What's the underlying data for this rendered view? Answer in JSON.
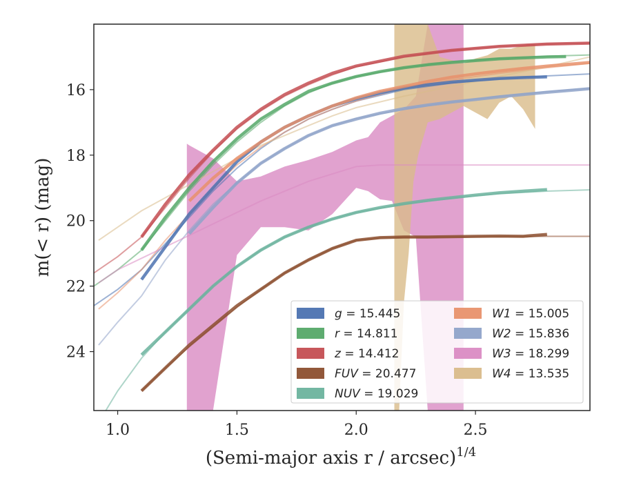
{
  "chart_data": {
    "type": "line",
    "xlabel": "(Semi-major axis r / arcsec)",
    "xlabel_sup": "1/4",
    "ylabel": "m(< r) (mag)",
    "xlim": [
      0.9,
      2.98
    ],
    "ylim": [
      25.8,
      14.0
    ],
    "y_inverted": true,
    "x_ticks": [
      1.0,
      1.5,
      2.0,
      2.5
    ],
    "x_tick_labels": [
      "1.0",
      "1.5",
      "2.0",
      "2.5"
    ],
    "y_ticks": [
      16,
      18,
      20,
      22,
      24
    ],
    "y_tick_labels": [
      "16",
      "18",
      "20",
      "22",
      "24"
    ],
    "grid": false,
    "legend_position": "lower-right",
    "series": [
      {
        "name": "g",
        "legend_value": "15.445",
        "color": "#4c72b0",
        "data_x": [
          1.1,
          1.2,
          1.3,
          1.4,
          1.5,
          1.6,
          1.7,
          1.8,
          1.9,
          2.0,
          2.1,
          2.2,
          2.3,
          2.4,
          2.5,
          2.6,
          2.7,
          2.8
        ],
        "data_y": [
          21.8,
          20.8,
          19.8,
          19.0,
          18.2,
          17.6,
          17.15,
          16.8,
          16.5,
          16.28,
          16.1,
          15.95,
          15.85,
          15.77,
          15.71,
          15.66,
          15.63,
          15.61
        ],
        "model_x": [
          0.9,
          1.0,
          1.1,
          1.2,
          1.3,
          1.4,
          1.5,
          1.6,
          1.7,
          1.8,
          1.9,
          2.0,
          2.2,
          2.4,
          2.6,
          2.8,
          2.98
        ],
        "model_y": [
          22.6,
          22.1,
          21.5,
          20.7,
          19.9,
          19.1,
          18.4,
          17.8,
          17.3,
          16.9,
          16.6,
          16.35,
          16.0,
          15.8,
          15.67,
          15.58,
          15.52
        ]
      },
      {
        "name": "r",
        "legend_value": "14.811",
        "color": "#55a868",
        "data_x": [
          1.1,
          1.2,
          1.3,
          1.4,
          1.5,
          1.6,
          1.7,
          1.8,
          1.9,
          2.0,
          2.1,
          2.2,
          2.3,
          2.4,
          2.5,
          2.6,
          2.7,
          2.8,
          2.88
        ],
        "data_y": [
          20.9,
          19.9,
          19.0,
          18.2,
          17.5,
          16.9,
          16.45,
          16.05,
          15.8,
          15.6,
          15.45,
          15.33,
          15.24,
          15.17,
          15.11,
          15.06,
          15.03,
          15.0,
          14.99
        ],
        "model_x": [
          0.9,
          1.0,
          1.1,
          1.2,
          1.3,
          1.4,
          1.5,
          1.6,
          1.7,
          1.8,
          1.9,
          2.0,
          2.2,
          2.4,
          2.6,
          2.8,
          2.98
        ],
        "model_y": [
          22.0,
          21.5,
          20.9,
          20.0,
          19.1,
          18.3,
          17.6,
          17.0,
          16.5,
          16.1,
          15.8,
          15.6,
          15.33,
          15.15,
          15.05,
          14.98,
          14.94
        ]
      },
      {
        "name": "z",
        "legend_value": "14.412",
        "color": "#c44e52",
        "data_x": [
          1.1,
          1.2,
          1.3,
          1.4,
          1.5,
          1.6,
          1.7,
          1.8,
          1.9,
          2.0,
          2.2,
          2.4,
          2.6,
          2.8,
          2.98
        ],
        "data_y": [
          20.5,
          19.5,
          18.6,
          17.85,
          17.15,
          16.6,
          16.15,
          15.8,
          15.5,
          15.28,
          14.98,
          14.8,
          14.68,
          14.61,
          14.58
        ],
        "model_x": [
          0.9,
          1.0,
          1.1,
          1.2,
          1.3,
          1.4,
          1.5,
          1.6,
          1.7,
          1.8,
          1.9,
          2.0,
          2.2,
          2.4,
          2.6,
          2.8,
          2.98
        ],
        "model_y": [
          21.6,
          21.1,
          20.5,
          19.6,
          18.7,
          17.9,
          17.2,
          16.65,
          16.2,
          15.85,
          15.55,
          15.3,
          15.0,
          14.8,
          14.68,
          14.61,
          14.58
        ]
      },
      {
        "name": "FUV",
        "legend_value": "20.477",
        "color": "#8c4f2f",
        "data_x": [
          1.1,
          1.2,
          1.3,
          1.4,
          1.5,
          1.6,
          1.7,
          1.8,
          1.9,
          2.0,
          2.1,
          2.2,
          2.3,
          2.4,
          2.5,
          2.6,
          2.7,
          2.8
        ],
        "data_y": [
          25.2,
          24.5,
          23.8,
          23.2,
          22.6,
          22.1,
          21.6,
          21.2,
          20.85,
          20.6,
          20.52,
          20.5,
          20.5,
          20.49,
          20.48,
          20.47,
          20.48,
          20.42
        ],
        "model_x": [
          1.1,
          1.2,
          1.3,
          1.4,
          1.5,
          1.6,
          1.7,
          1.8,
          1.9,
          2.0,
          2.1,
          2.2,
          2.4,
          2.6,
          2.8,
          2.98
        ],
        "model_y": [
          25.2,
          24.5,
          23.85,
          23.25,
          22.65,
          22.1,
          21.6,
          21.2,
          20.85,
          20.6,
          20.53,
          20.51,
          20.5,
          20.49,
          20.48,
          20.48
        ]
      },
      {
        "name": "NUV",
        "legend_value": "19.029",
        "color": "#6bb39d",
        "data_x": [
          1.1,
          1.2,
          1.3,
          1.4,
          1.5,
          1.6,
          1.7,
          1.8,
          1.9,
          2.0,
          2.1,
          2.2,
          2.3,
          2.4,
          2.5,
          2.6,
          2.7,
          2.8
        ],
        "data_y": [
          24.1,
          23.4,
          22.7,
          22.0,
          21.4,
          20.9,
          20.5,
          20.2,
          19.95,
          19.75,
          19.6,
          19.48,
          19.38,
          19.3,
          19.22,
          19.15,
          19.1,
          19.05
        ],
        "model_x": [
          0.95,
          1.0,
          1.1,
          1.2,
          1.3,
          1.4,
          1.5,
          1.6,
          1.7,
          1.8,
          1.9,
          2.0,
          2.2,
          2.4,
          2.6,
          2.8,
          2.98
        ],
        "model_y": [
          25.8,
          25.2,
          24.2,
          23.4,
          22.7,
          22.0,
          21.4,
          20.9,
          20.5,
          20.2,
          19.95,
          19.75,
          19.5,
          19.32,
          19.18,
          19.1,
          19.06
        ]
      },
      {
        "name": "W1",
        "legend_value": "15.005",
        "color": "#e8916b",
        "data_x": [
          1.3,
          1.4,
          1.5,
          1.6,
          1.7,
          1.8,
          1.9,
          2.0,
          2.1,
          2.2,
          2.3,
          2.4,
          2.5,
          2.6,
          2.7,
          2.8,
          2.9,
          2.98
        ],
        "data_y": [
          19.4,
          18.7,
          18.1,
          17.6,
          17.15,
          16.8,
          16.5,
          16.25,
          16.05,
          15.9,
          15.75,
          15.62,
          15.52,
          15.43,
          15.35,
          15.28,
          15.22,
          15.17
        ],
        "model_x": [
          0.92,
          1.0,
          1.1,
          1.2,
          1.3,
          1.4,
          1.5,
          1.6,
          1.7,
          1.8,
          1.9,
          2.0,
          2.2,
          2.4,
          2.6,
          2.8,
          2.98
        ],
        "model_y": [
          22.7,
          22.2,
          21.5,
          20.6,
          19.8,
          19.0,
          18.3,
          17.75,
          17.3,
          16.9,
          16.6,
          16.35,
          15.95,
          15.7,
          15.5,
          15.33,
          15.2
        ]
      },
      {
        "name": "W2",
        "legend_value": "15.836",
        "color": "#8fa3c9",
        "data_x": [
          1.3,
          1.4,
          1.5,
          1.6,
          1.7,
          1.8,
          1.9,
          2.0,
          2.1,
          2.2,
          2.3,
          2.4,
          2.5,
          2.6,
          2.7,
          2.8,
          2.9,
          2.98
        ],
        "data_y": [
          20.4,
          19.6,
          18.85,
          18.25,
          17.8,
          17.4,
          17.1,
          16.9,
          16.72,
          16.58,
          16.47,
          16.38,
          16.3,
          16.22,
          16.15,
          16.08,
          16.02,
          15.97
        ],
        "model_x": [
          0.92,
          1.0,
          1.1,
          1.2,
          1.3,
          1.4,
          1.5,
          1.6,
          1.7,
          1.8,
          1.9,
          2.0,
          2.2,
          2.4,
          2.6,
          2.8,
          2.98
        ],
        "model_y": [
          23.8,
          23.1,
          22.3,
          21.2,
          20.3,
          19.5,
          18.85,
          18.25,
          17.8,
          17.4,
          17.1,
          16.88,
          16.6,
          16.38,
          16.2,
          16.06,
          15.96
        ]
      },
      {
        "name": "W3",
        "legend_value": "18.299",
        "color": "#da8bc3",
        "band_x": [
          1.29,
          1.3,
          1.4,
          1.5,
          1.6,
          1.7,
          1.8,
          1.9,
          2.0,
          2.05,
          2.1,
          2.15,
          2.2,
          2.25,
          2.3,
          2.35,
          2.4,
          2.45
        ],
        "band_upper": [
          17.65,
          17.7,
          18.1,
          18.8,
          18.65,
          18.35,
          18.15,
          17.9,
          17.55,
          17.45,
          17.0,
          16.8,
          16.6,
          16.2,
          14.0,
          14.0,
          14.0,
          14.0
        ],
        "band_lower": [
          25.8,
          25.8,
          25.8,
          21.05,
          20.2,
          20.2,
          20.3,
          19.8,
          19.0,
          19.1,
          19.35,
          19.4,
          20.3,
          20.5,
          25.8,
          25.8,
          25.8,
          25.8
        ],
        "model_x": [
          0.92,
          1.0,
          1.2,
          1.4,
          1.6,
          1.8,
          2.0,
          2.1,
          2.2,
          2.4,
          2.6,
          2.8,
          2.98
        ],
        "model_y": [
          21.9,
          21.5,
          20.8,
          20.1,
          19.4,
          18.8,
          18.35,
          18.3,
          18.3,
          18.3,
          18.3,
          18.3,
          18.3
        ]
      },
      {
        "name": "W4",
        "legend_value": "13.535",
        "color": "#d9bb8a",
        "band_x": [
          2.16,
          2.18,
          2.2,
          2.22,
          2.24,
          2.26,
          2.28,
          2.3,
          2.35,
          2.4,
          2.45,
          2.5,
          2.55,
          2.6,
          2.65,
          2.7,
          2.75
        ],
        "band_upper": [
          14.0,
          14.0,
          14.0,
          14.0,
          14.0,
          14.0,
          14.0,
          14.0,
          15.0,
          15.1,
          15.2,
          15.05,
          14.95,
          14.75,
          14.75,
          14.65,
          14.6
        ],
        "band_lower": [
          25.8,
          25.8,
          22.5,
          21.0,
          18.8,
          18.0,
          17.5,
          17.0,
          16.9,
          16.7,
          16.5,
          16.7,
          16.9,
          16.4,
          16.2,
          16.6,
          17.2
        ],
        "model_x": [
          0.92,
          1.0,
          1.1,
          1.2,
          1.3,
          1.4,
          1.5,
          1.6,
          1.7,
          1.8,
          1.9,
          2.0,
          2.2,
          2.4,
          2.6,
          2.8,
          2.98
        ],
        "model_y": [
          20.6,
          20.2,
          19.7,
          19.3,
          18.9,
          18.5,
          18.1,
          17.7,
          17.4,
          17.1,
          16.8,
          16.55,
          16.2,
          15.9,
          15.6,
          15.3,
          15.0
        ]
      }
    ]
  }
}
